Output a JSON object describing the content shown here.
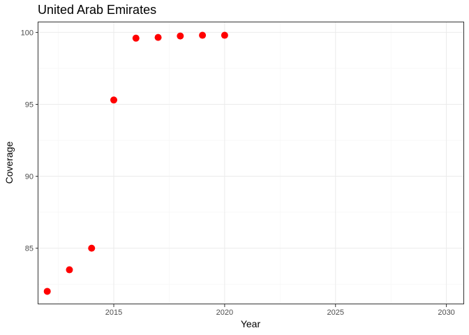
{
  "chart_data": {
    "type": "scatter",
    "title": "United Arab Emirates",
    "xlabel": "Year",
    "ylabel": "Coverage",
    "xlim": [
      2011.6,
      2030.8
    ],
    "ylim": [
      81.1,
      100.7
    ],
    "x_ticks": [
      2015,
      2020,
      2025,
      2030
    ],
    "y_ticks": [
      85,
      90,
      95,
      100
    ],
    "x_minor": [
      2012.5,
      2017.5,
      2022.5,
      2027.5
    ],
    "y_minor": [
      82.5,
      87.5,
      92.5,
      97.5
    ],
    "grid": true,
    "legend": "none",
    "point_color": "#ff0000",
    "series": [
      {
        "x": [
          2012,
          2013,
          2014,
          2015,
          2016,
          2017,
          2018,
          2019,
          2020
        ],
        "y": [
          82.0,
          83.5,
          85.0,
          95.3,
          99.6,
          99.65,
          99.75,
          99.8,
          99.8
        ]
      }
    ]
  }
}
